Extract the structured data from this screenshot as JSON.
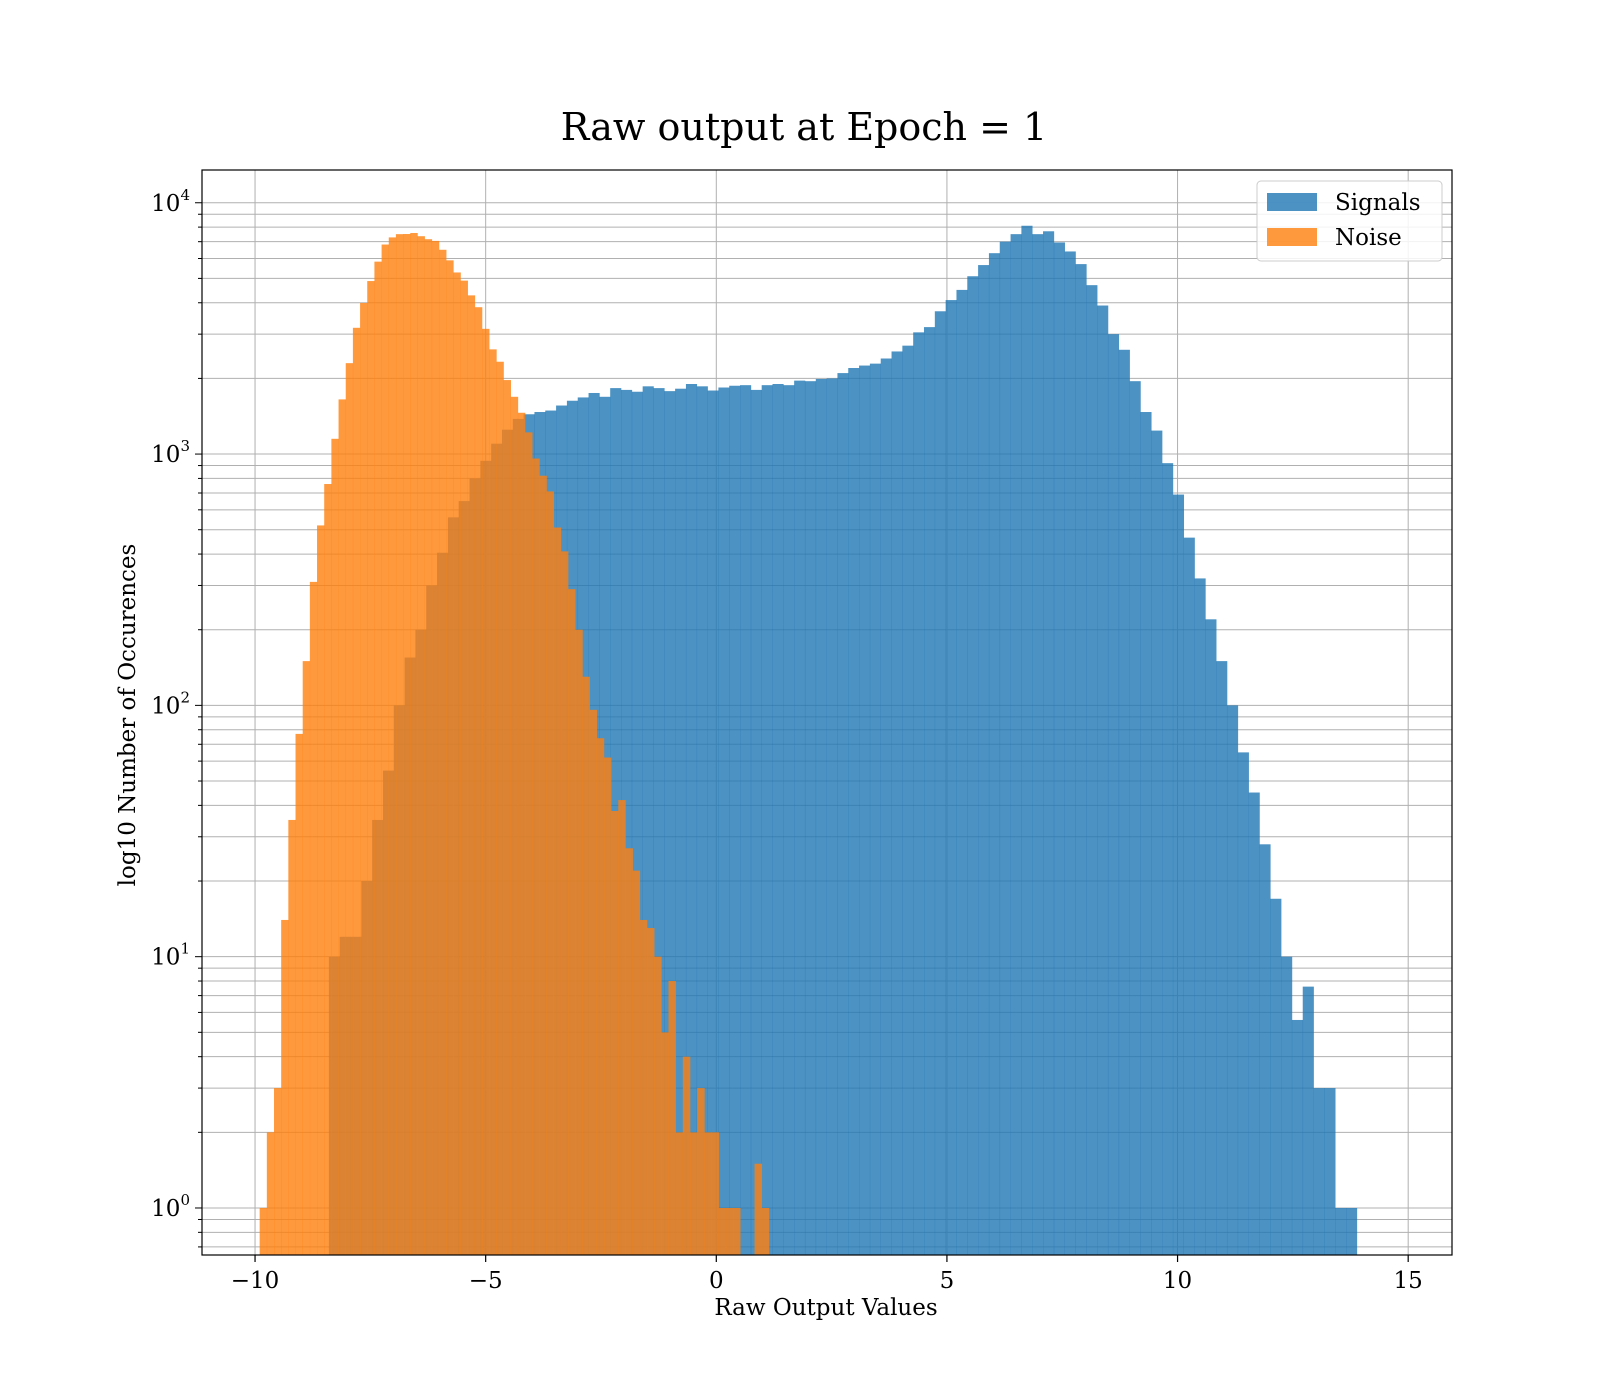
{
  "chart_data": {
    "type": "bar",
    "title": "Raw output at Epoch = 1",
    "xlabel": "Raw Output Values",
    "ylabel": "log10 Number of Occurences",
    "xlim": [
      -11.15,
      15.95
    ],
    "ylim": [
      0.65,
      13500
    ],
    "yscale": "log",
    "grid": true,
    "legend_position": "top-right",
    "xticks": [
      -10,
      -5,
      0,
      5,
      10,
      15
    ],
    "xtick_labels": [
      "−10",
      "−5",
      "0",
      "5",
      "10",
      "15"
    ],
    "yticks": [
      {
        "value": 1,
        "base": "10",
        "exp": "0"
      },
      {
        "value": 10,
        "base": "10",
        "exp": "1"
      },
      {
        "value": 100,
        "base": "10",
        "exp": "2"
      },
      {
        "value": 1000,
        "base": "10",
        "exp": "3"
      },
      {
        "value": 10000,
        "base": "10",
        "exp": "4"
      }
    ],
    "series": [
      {
        "name": "Signals",
        "color": "#1f77b4",
        "opacity": 0.8,
        "bin_start": -8.4,
        "bin_width": 0.2346,
        "values": [
          10,
          12,
          12,
          20,
          35,
          55,
          100,
          155,
          200,
          300,
          405,
          560,
          650,
          800,
          940,
          1100,
          1250,
          1380,
          1440,
          1470,
          1490,
          1560,
          1630,
          1680,
          1750,
          1690,
          1830,
          1800,
          1770,
          1860,
          1830,
          1780,
          1820,
          1900,
          1860,
          1790,
          1840,
          1870,
          1880,
          1800,
          1880,
          1900,
          1880,
          1960,
          1950,
          1990,
          2000,
          2100,
          2200,
          2250,
          2290,
          2400,
          2560,
          2700,
          3050,
          3200,
          3700,
          4100,
          4500,
          5100,
          5650,
          6300,
          7000,
          7500,
          8100,
          7500,
          7700,
          6950,
          6400,
          5700,
          4700,
          3900,
          3000,
          2600,
          1950,
          1470,
          1240,
          920,
          690,
          465,
          320,
          220,
          150,
          100,
          65,
          45,
          28,
          17,
          10,
          5.6,
          7.6,
          3,
          3,
          1,
          1
        ]
      },
      {
        "name": "Noise",
        "color": "#ff7f0e",
        "opacity": 0.8,
        "bin_start": -9.9,
        "bin_width": 0.1555,
        "values": [
          1,
          2,
          3,
          14,
          35,
          77,
          150,
          310,
          520,
          760,
          1150,
          1650,
          2300,
          3180,
          3990,
          4880,
          5830,
          6820,
          7280,
          7500,
          7510,
          7580,
          7360,
          7160,
          7050,
          6500,
          5900,
          5280,
          4900,
          4280,
          3840,
          3150,
          2610,
          2330,
          1970,
          1690,
          1460,
          1220,
          960,
          820,
          710,
          510,
          410,
          290,
          200,
          130,
          96,
          74,
          62,
          38,
          42,
          27,
          22,
          14,
          13,
          10,
          5,
          8,
          2,
          4,
          2,
          3,
          2,
          2,
          1,
          1,
          1,
          0,
          0,
          1.5,
          1
        ]
      }
    ]
  }
}
